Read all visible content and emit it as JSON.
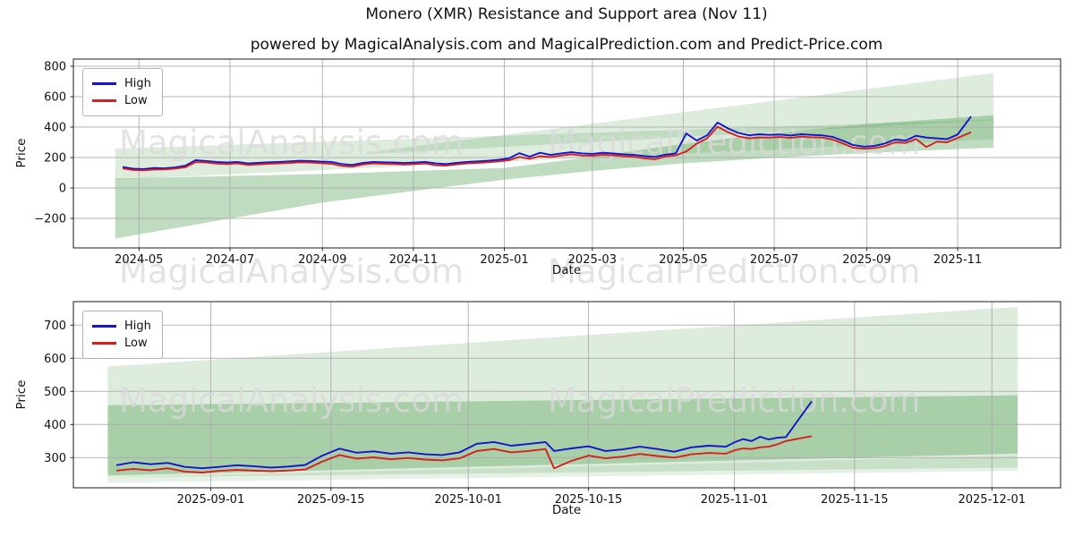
{
  "figure": {
    "title": "Monero (XMR) Resistance and Support area (Nov 11)",
    "subtitle": "powered by MagicalAnalysis.com and MagicalPrediction.com and Predict-Price.com"
  },
  "watermarks": {
    "left": "MagicalAnalysis.com",
    "right": "MagicalPrediction.com",
    "color": "#d9d9d9"
  },
  "colors": {
    "high_line": "#1414cc",
    "low_line": "#d62020",
    "band_green": "#2e8b2e",
    "grid": "#a9a9a9",
    "spine": "#1a1a1a",
    "text": "#111111"
  },
  "chart_data": [
    {
      "type": "line",
      "name": "full-history",
      "xlabel": "Date",
      "ylabel": "Price",
      "grid": true,
      "legend_position": "upper-left",
      "xlim": [
        "2024-03-18",
        "2026-01-09"
      ],
      "ylim": [
        -394,
        847
      ],
      "yticks": [
        {
          "v": -200,
          "label": "−200"
        },
        {
          "v": 0,
          "label": "0"
        },
        {
          "v": 200,
          "label": "200"
        },
        {
          "v": 400,
          "label": "400"
        },
        {
          "v": 600,
          "label": "600"
        },
        {
          "v": 800,
          "label": "800"
        }
      ],
      "xticks": [
        {
          "v": "2024-05-01",
          "label": "2024-05"
        },
        {
          "v": "2024-07-01",
          "label": "2024-07"
        },
        {
          "v": "2024-09-01",
          "label": "2024-09"
        },
        {
          "v": "2024-11-01",
          "label": "2024-11"
        },
        {
          "v": "2025-01-01",
          "label": "2025-01"
        },
        {
          "v": "2025-03-01",
          "label": "2025-03"
        },
        {
          "v": "2025-05-01",
          "label": "2025-05"
        },
        {
          "v": "2025-07-01",
          "label": "2025-07"
        },
        {
          "v": "2025-09-01",
          "label": "2025-09"
        },
        {
          "v": "2025-11-01",
          "label": "2025-11"
        }
      ],
      "legend": [
        {
          "label": "High",
          "color": "#1414cc"
        },
        {
          "label": "Low",
          "color": "#d62020"
        }
      ],
      "dates": [
        "2024-04-20",
        "2024-04-27",
        "2024-05-04",
        "2024-05-11",
        "2024-05-18",
        "2024-05-25",
        "2024-06-01",
        "2024-06-08",
        "2024-06-15",
        "2024-06-22",
        "2024-06-29",
        "2024-07-06",
        "2024-07-13",
        "2024-07-20",
        "2024-07-27",
        "2024-08-03",
        "2024-08-10",
        "2024-08-17",
        "2024-08-24",
        "2024-08-31",
        "2024-09-07",
        "2024-09-14",
        "2024-09-21",
        "2024-09-28",
        "2024-10-05",
        "2024-10-12",
        "2024-10-19",
        "2024-10-26",
        "2024-11-02",
        "2024-11-09",
        "2024-11-16",
        "2024-11-23",
        "2024-11-30",
        "2024-12-07",
        "2024-12-14",
        "2024-12-21",
        "2024-12-28",
        "2025-01-04",
        "2025-01-11",
        "2025-01-18",
        "2025-01-25",
        "2025-02-01",
        "2025-02-08",
        "2025-02-15",
        "2025-02-22",
        "2025-03-01",
        "2025-03-08",
        "2025-03-15",
        "2025-03-22",
        "2025-03-29",
        "2025-04-05",
        "2025-04-12",
        "2025-04-19",
        "2025-04-26",
        "2025-05-03",
        "2025-05-10",
        "2025-05-17",
        "2025-05-24",
        "2025-05-31",
        "2025-06-07",
        "2025-06-14",
        "2025-06-21",
        "2025-06-28",
        "2025-07-05",
        "2025-07-12",
        "2025-07-19",
        "2025-07-26",
        "2025-08-02",
        "2025-08-09",
        "2025-08-16",
        "2025-08-23",
        "2025-08-30",
        "2025-09-06",
        "2025-09-13",
        "2025-09-20",
        "2025-09-27",
        "2025-10-04",
        "2025-10-11",
        "2025-10-18",
        "2025-10-25",
        "2025-11-01",
        "2025-11-10"
      ],
      "high": [
        138,
        127,
        124,
        131,
        129,
        135,
        146,
        183,
        177,
        171,
        167,
        171,
        161,
        165,
        169,
        171,
        175,
        179,
        177,
        173,
        171,
        157,
        151,
        164,
        171,
        169,
        167,
        164,
        167,
        171,
        161,
        157,
        165,
        171,
        175,
        179,
        185,
        194,
        228,
        206,
        231,
        217,
        227,
        235,
        227,
        224,
        231,
        227,
        221,
        217,
        209,
        204,
        219,
        227,
        358,
        312,
        346,
        430,
        391,
        362,
        346,
        353,
        349,
        351,
        345,
        353,
        349,
        346,
        336,
        311,
        282,
        272,
        276,
        292,
        318,
        312,
        343,
        331,
        326,
        321,
        351,
        470
      ],
      "low": [
        128,
        118,
        116,
        121,
        122,
        127,
        136,
        170,
        167,
        160,
        157,
        161,
        151,
        155,
        159,
        161,
        165,
        169,
        167,
        163,
        159,
        145,
        140,
        154,
        161,
        159,
        157,
        154,
        157,
        161,
        149,
        147,
        155,
        161,
        165,
        169,
        175,
        182,
        204,
        192,
        209,
        203,
        213,
        221,
        213,
        212,
        219,
        215,
        209,
        205,
        195,
        189,
        207,
        214,
        240,
        292,
        326,
        403,
        366,
        339,
        326,
        331,
        331,
        335,
        329,
        337,
        333,
        331,
        319,
        293,
        264,
        258,
        262,
        274,
        300,
        296,
        322,
        269,
        304,
        300,
        329,
        366
      ],
      "bands": [
        {
          "name": "resistance-area-shallow",
          "opacity": 0.16,
          "points": [
            [
              "2024-04-15",
              258
            ],
            [
              "2025-11-25",
              450
            ],
            [
              "2025-11-25",
              320
            ],
            [
              "2024-04-15",
              55
            ]
          ]
        },
        {
          "name": "resistance-area-fan",
          "opacity": 0.16,
          "points": [
            [
              "2024-10-01",
              235
            ],
            [
              "2025-11-25",
              755
            ],
            [
              "2025-11-25",
              445
            ],
            [
              "2024-10-01",
              222
            ]
          ]
        },
        {
          "name": "support-area-wedge",
          "opacity": 0.3,
          "points": [
            [
              "2024-04-15",
              62
            ],
            [
              "2024-09-01",
              92
            ],
            [
              "2025-01-01",
              132
            ],
            [
              "2025-03-01",
              205
            ],
            [
              "2025-05-01",
              290
            ],
            [
              "2025-07-01",
              360
            ],
            [
              "2025-09-01",
              420
            ],
            [
              "2025-11-25",
              478
            ],
            [
              "2025-11-25",
              265
            ],
            [
              "2025-09-01",
              230
            ],
            [
              "2025-07-01",
              198
            ],
            [
              "2025-05-01",
              162
            ],
            [
              "2025-03-01",
              112
            ],
            [
              "2025-01-01",
              55
            ],
            [
              "2024-09-01",
              -95
            ],
            [
              "2024-04-15",
              -332
            ]
          ]
        }
      ]
    },
    {
      "type": "line",
      "name": "recent-zoom",
      "xlabel": "Date",
      "ylabel": "Price",
      "grid": true,
      "legend_position": "upper-left",
      "xlim": [
        "2025-08-16",
        "2025-12-09"
      ],
      "ylim": [
        209,
        771
      ],
      "yticks": [
        {
          "v": 300,
          "label": "300"
        },
        {
          "v": 400,
          "label": "400"
        },
        {
          "v": 500,
          "label": "500"
        },
        {
          "v": 600,
          "label": "600"
        },
        {
          "v": 700,
          "label": "700"
        }
      ],
      "xticks": [
        {
          "v": "2025-09-01",
          "label": "2025-09-01"
        },
        {
          "v": "2025-09-15",
          "label": "2025-09-15"
        },
        {
          "v": "2025-10-01",
          "label": "2025-10-01"
        },
        {
          "v": "2025-10-15",
          "label": "2025-10-15"
        },
        {
          "v": "2025-11-01",
          "label": "2025-11-01"
        },
        {
          "v": "2025-11-15",
          "label": "2025-11-15"
        },
        {
          "v": "2025-12-01",
          "label": "2025-12-01"
        }
      ],
      "legend": [
        {
          "label": "High",
          "color": "#1414cc"
        },
        {
          "label": "Low",
          "color": "#d62020"
        }
      ],
      "dates": [
        "2025-08-21",
        "2025-08-23",
        "2025-08-25",
        "2025-08-27",
        "2025-08-29",
        "2025-08-31",
        "2025-09-02",
        "2025-09-04",
        "2025-09-06",
        "2025-09-08",
        "2025-09-10",
        "2025-09-12",
        "2025-09-14",
        "2025-09-16",
        "2025-09-18",
        "2025-09-20",
        "2025-09-22",
        "2025-09-24",
        "2025-09-26",
        "2025-09-28",
        "2025-09-30",
        "2025-10-02",
        "2025-10-04",
        "2025-10-06",
        "2025-10-08",
        "2025-10-10",
        "2025-10-11",
        "2025-10-13",
        "2025-10-15",
        "2025-10-17",
        "2025-10-19",
        "2025-10-21",
        "2025-10-23",
        "2025-10-25",
        "2025-10-27",
        "2025-10-29",
        "2025-10-31",
        "2025-11-01",
        "2025-11-02",
        "2025-11-03",
        "2025-11-04",
        "2025-11-05",
        "2025-11-06",
        "2025-11-07",
        "2025-11-10"
      ],
      "high": [
        277,
        286,
        280,
        284,
        272,
        268,
        272,
        277,
        274,
        270,
        273,
        278,
        306,
        327,
        315,
        319,
        312,
        316,
        310,
        308,
        316,
        342,
        347,
        336,
        341,
        347,
        320,
        328,
        334,
        320,
        325,
        333,
        326,
        318,
        331,
        336,
        333,
        346,
        356,
        350,
        363,
        355,
        360,
        362,
        470
      ],
      "low": [
        261,
        266,
        262,
        268,
        258,
        255,
        260,
        263,
        261,
        259,
        261,
        264,
        288,
        308,
        297,
        301,
        295,
        299,
        294,
        292,
        298,
        320,
        326,
        316,
        320,
        326,
        268,
        290,
        306,
        298,
        303,
        311,
        305,
        300,
        310,
        314,
        312,
        322,
        328,
        326,
        331,
        333,
        340,
        350,
        365
      ],
      "bands": [
        {
          "name": "resistance-area",
          "opacity": 0.16,
          "points": [
            [
              "2025-08-20",
              575
            ],
            [
              "2025-12-04",
              755
            ],
            [
              "2025-12-04",
              270
            ],
            [
              "2025-08-20",
              240
            ]
          ]
        },
        {
          "name": "support-area",
          "opacity": 0.3,
          "points": [
            [
              "2025-08-20",
              458
            ],
            [
              "2025-12-04",
              488
            ],
            [
              "2025-12-04",
              312
            ],
            [
              "2025-08-20",
              246
            ]
          ]
        },
        {
          "name": "support-area-faint",
          "opacity": 0.12,
          "points": [
            [
              "2025-08-20",
              240
            ],
            [
              "2025-12-04",
              305
            ],
            [
              "2025-12-04",
              260
            ],
            [
              "2025-08-20",
              224
            ]
          ]
        }
      ]
    }
  ]
}
